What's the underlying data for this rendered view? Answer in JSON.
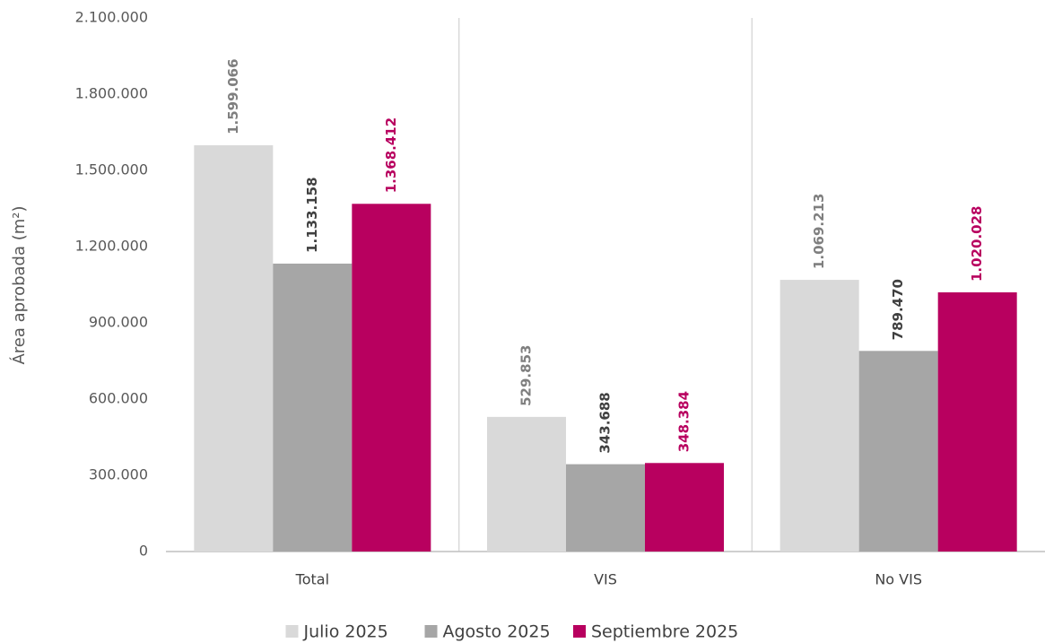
{
  "chart_data": {
    "type": "bar",
    "y_label": "Área aprobada (m²)",
    "categories": [
      "Total",
      "VIS",
      "No VIS"
    ],
    "series": [
      {
        "name": "Julio 2025",
        "color": "#d9d9d9",
        "label_color": "#7f7f7f",
        "values": [
          1599066,
          529853,
          1069213
        ],
        "value_labels": [
          "1.599.066",
          "529.853",
          "1.069.213"
        ]
      },
      {
        "name": "Agosto 2025",
        "color": "#a6a6a6",
        "label_color": "#404040",
        "values": [
          1133158,
          343688,
          789470
        ],
        "value_labels": [
          "1.133.158",
          "343.688",
          "789.470"
        ]
      },
      {
        "name": "Septiembre 2025",
        "color": "#b8005f",
        "label_color": "#b8005f",
        "values": [
          1368412,
          348384,
          1020028
        ],
        "value_labels": [
          "1.368.412",
          "348.384",
          "1.020.028"
        ]
      }
    ],
    "ylim": [
      0,
      2100000
    ],
    "yticks": [
      0,
      {
        "value": 300000,
        "label": "300.000"
      },
      {
        "value": 600000,
        "label": "600.000"
      },
      {
        "value": 900000,
        "label": "900.000"
      },
      {
        "value": 1200000,
        "label": "1.200.000"
      },
      {
        "value": 1500000,
        "label": "1.500.000"
      },
      {
        "value": 1800000,
        "label": "1.800.000"
      },
      {
        "value": 2100000,
        "label": "2.100.000"
      }
    ],
    "legend": "bottom"
  }
}
